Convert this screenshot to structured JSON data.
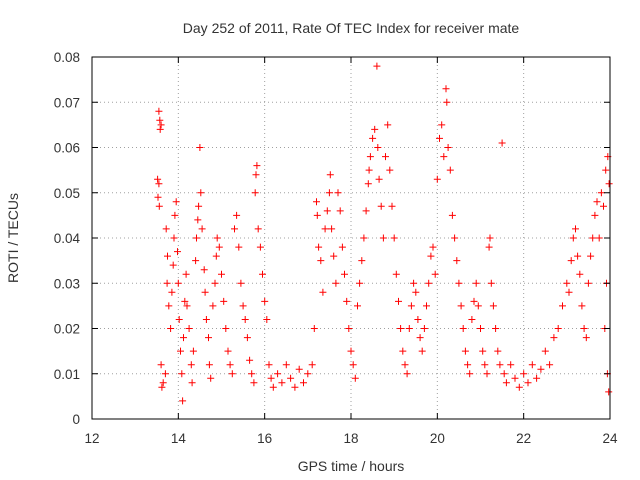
{
  "chart_data": {
    "type": "scatter",
    "title": "Day 252 of 2011, Rate Of TEC Index for receiver mate",
    "xlabel": "GPS time / hours",
    "ylabel": "ROTI / TECUs",
    "xlim": [
      12,
      24
    ],
    "ylim": [
      0,
      0.08
    ],
    "xticks": [
      12,
      14,
      16,
      18,
      20,
      22,
      24
    ],
    "yticks": [
      0,
      0.01,
      0.02,
      0.03,
      0.04,
      0.05,
      0.06,
      0.07,
      0.08
    ],
    "xtick_labels": [
      "12",
      "14",
      "16",
      "18",
      "20",
      "22",
      "24"
    ],
    "ytick_labels": [
      "0",
      "0.01",
      "0.02",
      "0.03",
      "0.04",
      "0.05",
      "0.06",
      "0.07",
      "0.08"
    ],
    "grid": true,
    "marker": "+",
    "color": "#ff0000",
    "series": [
      {
        "points": [
          [
            13.55,
            0.068
          ],
          [
            13.57,
            0.066
          ],
          [
            13.6,
            0.065
          ],
          [
            13.58,
            0.064
          ],
          [
            13.52,
            0.053
          ],
          [
            13.55,
            0.052
          ],
          [
            13.53,
            0.049
          ],
          [
            13.56,
            0.047
          ],
          [
            13.6,
            0.012
          ],
          [
            13.65,
            0.008
          ],
          [
            13.62,
            0.007
          ],
          [
            13.7,
            0.01
          ],
          [
            13.72,
            0.042
          ],
          [
            13.75,
            0.036
          ],
          [
            13.74,
            0.03
          ],
          [
            13.78,
            0.025
          ],
          [
            13.82,
            0.02
          ],
          [
            13.85,
            0.028
          ],
          [
            13.88,
            0.034
          ],
          [
            13.9,
            0.04
          ],
          [
            13.92,
            0.045
          ],
          [
            13.95,
            0.048
          ],
          [
            13.98,
            0.037
          ],
          [
            14.0,
            0.03
          ],
          [
            14.02,
            0.022
          ],
          [
            14.05,
            0.015
          ],
          [
            14.08,
            0.01
          ],
          [
            14.1,
            0.004
          ],
          [
            14.12,
            0.018
          ],
          [
            14.15,
            0.026
          ],
          [
            14.18,
            0.032
          ],
          [
            14.2,
            0.025
          ],
          [
            14.25,
            0.02
          ],
          [
            14.3,
            0.012
          ],
          [
            14.32,
            0.008
          ],
          [
            14.35,
            0.015
          ],
          [
            14.4,
            0.035
          ],
          [
            14.42,
            0.04
          ],
          [
            14.45,
            0.044
          ],
          [
            14.47,
            0.047
          ],
          [
            14.5,
            0.06
          ],
          [
            14.52,
            0.05
          ],
          [
            14.55,
            0.042
          ],
          [
            14.6,
            0.033
          ],
          [
            14.62,
            0.028
          ],
          [
            14.65,
            0.022
          ],
          [
            14.7,
            0.018
          ],
          [
            14.72,
            0.012
          ],
          [
            14.75,
            0.009
          ],
          [
            14.8,
            0.025
          ],
          [
            14.85,
            0.03
          ],
          [
            14.88,
            0.036
          ],
          [
            14.9,
            0.04
          ],
          [
            14.95,
            0.038
          ],
          [
            15.0,
            0.032
          ],
          [
            15.05,
            0.026
          ],
          [
            15.1,
            0.02
          ],
          [
            15.15,
            0.015
          ],
          [
            15.2,
            0.012
          ],
          [
            15.25,
            0.01
          ],
          [
            15.3,
            0.042
          ],
          [
            15.35,
            0.045
          ],
          [
            15.4,
            0.038
          ],
          [
            15.45,
            0.03
          ],
          [
            15.5,
            0.025
          ],
          [
            15.55,
            0.022
          ],
          [
            15.6,
            0.018
          ],
          [
            15.65,
            0.013
          ],
          [
            15.7,
            0.01
          ],
          [
            15.75,
            0.008
          ],
          [
            15.78,
            0.05
          ],
          [
            15.8,
            0.054
          ],
          [
            15.82,
            0.056
          ],
          [
            15.85,
            0.042
          ],
          [
            15.9,
            0.038
          ],
          [
            15.95,
            0.032
          ],
          [
            16.0,
            0.026
          ],
          [
            16.05,
            0.022
          ],
          [
            16.1,
            0.012
          ],
          [
            16.15,
            0.009
          ],
          [
            16.2,
            0.007
          ],
          [
            16.3,
            0.01
          ],
          [
            16.4,
            0.008
          ],
          [
            16.5,
            0.012
          ],
          [
            16.6,
            0.009
          ],
          [
            16.7,
            0.007
          ],
          [
            16.8,
            0.011
          ],
          [
            16.9,
            0.008
          ],
          [
            17.0,
            0.01
          ],
          [
            17.1,
            0.012
          ],
          [
            17.15,
            0.02
          ],
          [
            17.2,
            0.048
          ],
          [
            17.22,
            0.045
          ],
          [
            17.25,
            0.038
          ],
          [
            17.3,
            0.035
          ],
          [
            17.35,
            0.028
          ],
          [
            17.4,
            0.042
          ],
          [
            17.45,
            0.046
          ],
          [
            17.5,
            0.05
          ],
          [
            17.52,
            0.054
          ],
          [
            17.55,
            0.042
          ],
          [
            17.6,
            0.036
          ],
          [
            17.65,
            0.03
          ],
          [
            17.7,
            0.05
          ],
          [
            17.75,
            0.046
          ],
          [
            17.8,
            0.038
          ],
          [
            17.85,
            0.032
          ],
          [
            17.9,
            0.026
          ],
          [
            17.95,
            0.02
          ],
          [
            18.0,
            0.015
          ],
          [
            18.05,
            0.012
          ],
          [
            18.1,
            0.009
          ],
          [
            18.15,
            0.025
          ],
          [
            18.2,
            0.03
          ],
          [
            18.25,
            0.035
          ],
          [
            18.3,
            0.04
          ],
          [
            18.35,
            0.046
          ],
          [
            18.4,
            0.052
          ],
          [
            18.42,
            0.055
          ],
          [
            18.45,
            0.058
          ],
          [
            18.5,
            0.062
          ],
          [
            18.55,
            0.064
          ],
          [
            18.6,
            0.078
          ],
          [
            18.62,
            0.06
          ],
          [
            18.65,
            0.053
          ],
          [
            18.7,
            0.047
          ],
          [
            18.75,
            0.04
          ],
          [
            18.8,
            0.058
          ],
          [
            18.85,
            0.065
          ],
          [
            18.9,
            0.055
          ],
          [
            18.95,
            0.047
          ],
          [
            19.0,
            0.04
          ],
          [
            19.05,
            0.032
          ],
          [
            19.1,
            0.026
          ],
          [
            19.15,
            0.02
          ],
          [
            19.2,
            0.015
          ],
          [
            19.25,
            0.012
          ],
          [
            19.3,
            0.01
          ],
          [
            19.35,
            0.02
          ],
          [
            19.4,
            0.025
          ],
          [
            19.45,
            0.03
          ],
          [
            19.5,
            0.028
          ],
          [
            19.55,
            0.022
          ],
          [
            19.6,
            0.018
          ],
          [
            19.65,
            0.015
          ],
          [
            19.7,
            0.02
          ],
          [
            19.75,
            0.025
          ],
          [
            19.8,
            0.03
          ],
          [
            19.85,
            0.036
          ],
          [
            19.9,
            0.038
          ],
          [
            19.95,
            0.032
          ],
          [
            20.0,
            0.053
          ],
          [
            20.05,
            0.062
          ],
          [
            20.1,
            0.065
          ],
          [
            20.15,
            0.058
          ],
          [
            20.2,
            0.073
          ],
          [
            20.22,
            0.07
          ],
          [
            20.25,
            0.06
          ],
          [
            20.3,
            0.055
          ],
          [
            20.35,
            0.045
          ],
          [
            20.4,
            0.04
          ],
          [
            20.45,
            0.035
          ],
          [
            20.5,
            0.03
          ],
          [
            20.55,
            0.025
          ],
          [
            20.6,
            0.02
          ],
          [
            20.65,
            0.015
          ],
          [
            20.7,
            0.012
          ],
          [
            20.75,
            0.01
          ],
          [
            20.8,
            0.022
          ],
          [
            20.85,
            0.026
          ],
          [
            20.9,
            0.03
          ],
          [
            20.95,
            0.025
          ],
          [
            21.0,
            0.02
          ],
          [
            21.05,
            0.015
          ],
          [
            21.1,
            0.012
          ],
          [
            21.15,
            0.01
          ],
          [
            21.2,
            0.038
          ],
          [
            21.22,
            0.04
          ],
          [
            21.25,
            0.03
          ],
          [
            21.3,
            0.025
          ],
          [
            21.35,
            0.02
          ],
          [
            21.4,
            0.015
          ],
          [
            21.45,
            0.012
          ],
          [
            21.5,
            0.061
          ],
          [
            21.55,
            0.01
          ],
          [
            21.6,
            0.008
          ],
          [
            21.7,
            0.012
          ],
          [
            21.8,
            0.009
          ],
          [
            21.9,
            0.007
          ],
          [
            22.0,
            0.01
          ],
          [
            22.1,
            0.008
          ],
          [
            22.2,
            0.012
          ],
          [
            22.3,
            0.009
          ],
          [
            22.4,
            0.011
          ],
          [
            22.5,
            0.015
          ],
          [
            22.6,
            0.012
          ],
          [
            22.7,
            0.018
          ],
          [
            22.8,
            0.02
          ],
          [
            22.9,
            0.025
          ],
          [
            23.0,
            0.03
          ],
          [
            23.05,
            0.028
          ],
          [
            23.1,
            0.035
          ],
          [
            23.15,
            0.04
          ],
          [
            23.2,
            0.042
          ],
          [
            23.25,
            0.036
          ],
          [
            23.3,
            0.032
          ],
          [
            23.35,
            0.025
          ],
          [
            23.4,
            0.02
          ],
          [
            23.45,
            0.018
          ],
          [
            23.5,
            0.03
          ],
          [
            23.55,
            0.036
          ],
          [
            23.6,
            0.04
          ],
          [
            23.65,
            0.045
          ],
          [
            23.7,
            0.048
          ],
          [
            23.75,
            0.04
          ],
          [
            23.8,
            0.05
          ],
          [
            23.85,
            0.047
          ],
          [
            23.9,
            0.055
          ],
          [
            23.95,
            0.058
          ],
          [
            23.98,
            0.052
          ],
          [
            23.92,
            0.03
          ],
          [
            23.88,
            0.02
          ],
          [
            23.94,
            0.01
          ],
          [
            23.97,
            0.006
          ]
        ]
      }
    ]
  }
}
